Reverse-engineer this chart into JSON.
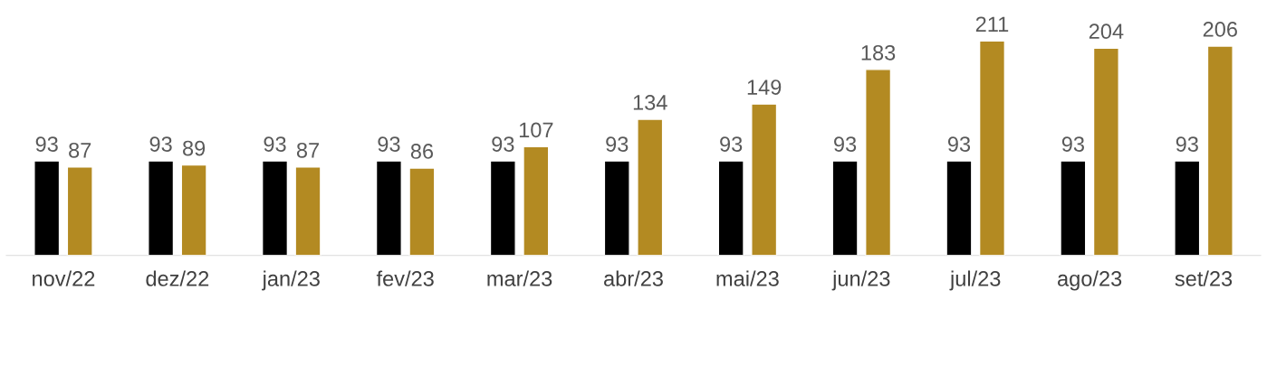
{
  "chart_data": {
    "type": "bar",
    "categories": [
      "nov/22",
      "dez/22",
      "jan/23",
      "fev/23",
      "mar/23",
      "abr/23",
      "mai/23",
      "jun/23",
      "jul/23",
      "ago/23",
      "set/23"
    ],
    "series": [
      {
        "color": "#000000",
        "values": [
          93,
          93,
          93,
          93,
          93,
          93,
          93,
          93,
          93,
          93,
          93
        ]
      },
      {
        "color": "#b38a22",
        "values": [
          87,
          89,
          87,
          86,
          107,
          134,
          149,
          183,
          211,
          204,
          206
        ]
      }
    ],
    "data_labels": true,
    "grid": false
  }
}
